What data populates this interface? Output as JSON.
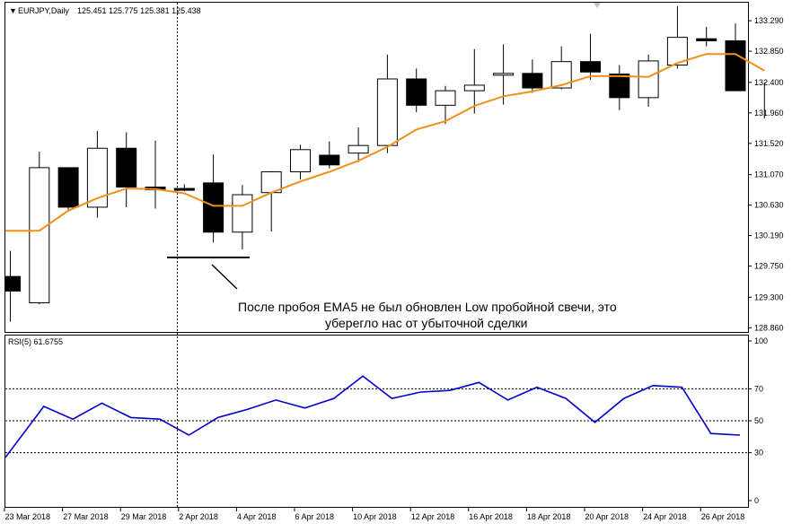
{
  "window": {
    "symbol_line": "EURJPY,Daily",
    "ohlc_line": "125.451 125.775 125.381 125.438"
  },
  "annotation": {
    "line1": "После пробоя EMA5 не был обновлен Low пробойной свечи, это",
    "line2": "уберегло нас от убыточной сделки"
  },
  "colors": {
    "bull_fill": "#ffffff",
    "bear_fill": "#000000",
    "ema": "#f0901c",
    "rsi": "#0000cc",
    "grid": "#000000"
  },
  "chart_data": [
    {
      "type": "candlestick",
      "title": "EURJPY,Daily",
      "y_ticks": [
        "133.290",
        "132.850",
        "132.400",
        "131.960",
        "131.520",
        "131.070",
        "130.630",
        "130.190",
        "129.750",
        "129.300",
        "128.860"
      ],
      "ylim": [
        128.8,
        133.55
      ],
      "x_ticks": [
        "23 Mar 2018",
        "27 Mar 2018",
        "29 Mar 2018",
        "2 Apr 2018",
        "4 Apr 2018",
        "6 Apr 2018",
        "10 Apr 2018",
        "12 Apr 2018",
        "16 Apr 2018",
        "18 Apr 2018",
        "20 Apr 2018",
        "24 Apr 2018",
        "26 Apr 2018"
      ],
      "candles": [
        {
          "o": 129.6,
          "h": 129.97,
          "l": 128.95,
          "c": 129.39
        },
        {
          "o": 129.22,
          "h": 131.4,
          "l": 129.2,
          "c": 131.17
        },
        {
          "o": 131.17,
          "h": 131.17,
          "l": 130.55,
          "c": 130.6
        },
        {
          "o": 130.6,
          "h": 131.7,
          "l": 130.45,
          "c": 131.45
        },
        {
          "o": 131.45,
          "h": 131.68,
          "l": 130.6,
          "c": 130.89
        },
        {
          "o": 130.89,
          "h": 131.56,
          "l": 130.58,
          "c": 130.85
        },
        {
          "o": 130.87,
          "h": 130.93,
          "l": 130.83,
          "c": 130.85
        },
        {
          "o": 130.95,
          "h": 131.36,
          "l": 130.09,
          "c": 130.24
        },
        {
          "o": 130.24,
          "h": 130.92,
          "l": 129.99,
          "c": 130.78
        },
        {
          "o": 130.81,
          "h": 131.12,
          "l": 130.25,
          "c": 131.11
        },
        {
          "o": 131.11,
          "h": 131.5,
          "l": 131.0,
          "c": 131.43
        },
        {
          "o": 131.35,
          "h": 131.55,
          "l": 131.16,
          "c": 131.21
        },
        {
          "o": 131.38,
          "h": 131.75,
          "l": 131.25,
          "c": 131.49
        },
        {
          "o": 131.49,
          "h": 132.8,
          "l": 131.38,
          "c": 132.45
        },
        {
          "o": 132.45,
          "h": 132.6,
          "l": 131.97,
          "c": 132.07
        },
        {
          "o": 132.07,
          "h": 132.35,
          "l": 131.8,
          "c": 132.28
        },
        {
          "o": 132.28,
          "h": 132.88,
          "l": 131.95,
          "c": 132.36
        },
        {
          "o": 132.53,
          "h": 132.95,
          "l": 132.08,
          "c": 132.53
        },
        {
          "o": 132.53,
          "h": 132.73,
          "l": 132.25,
          "c": 132.32
        },
        {
          "o": 132.32,
          "h": 132.92,
          "l": 132.3,
          "c": 132.7
        },
        {
          "o": 132.7,
          "h": 133.1,
          "l": 132.44,
          "c": 132.55
        },
        {
          "o": 132.52,
          "h": 132.65,
          "l": 132.0,
          "c": 132.18
        },
        {
          "o": 132.18,
          "h": 132.8,
          "l": 132.05,
          "c": 132.71
        },
        {
          "o": 132.65,
          "h": 133.5,
          "l": 132.6,
          "c": 133.05
        },
        {
          "o": 133.03,
          "h": 133.2,
          "l": 132.92,
          "c": 133.0
        },
        {
          "o": 133.0,
          "h": 133.25,
          "l": 132.28,
          "c": 132.28
        },
        {
          "o": 132.25,
          "h": 132.4,
          "l": 131.88,
          "c": 132.22
        }
      ],
      "ema5": [
        130.26,
        130.26,
        130.55,
        130.73,
        130.87,
        130.86,
        130.8,
        130.62,
        130.62,
        130.81,
        130.97,
        131.11,
        131.27,
        131.47,
        131.72,
        131.84,
        132.06,
        132.2,
        132.27,
        132.36,
        132.49,
        132.49,
        132.48,
        132.68,
        132.81,
        132.81,
        132.57
      ]
    },
    {
      "type": "line",
      "title": "RSI(5) 61.6755",
      "series": [
        {
          "name": "RSI(5)",
          "values": [
            27,
            59,
            51,
            61,
            52,
            51,
            41,
            52,
            57,
            63,
            58,
            64,
            78,
            64,
            68,
            69,
            74,
            63,
            71,
            64,
            49,
            64,
            72,
            71,
            42,
            41
          ]
        }
      ],
      "y_ticks": [
        "100",
        "70",
        "50",
        "30",
        "0"
      ],
      "ylim": [
        0,
        100
      ],
      "levels": [
        30,
        50,
        70
      ]
    }
  ]
}
